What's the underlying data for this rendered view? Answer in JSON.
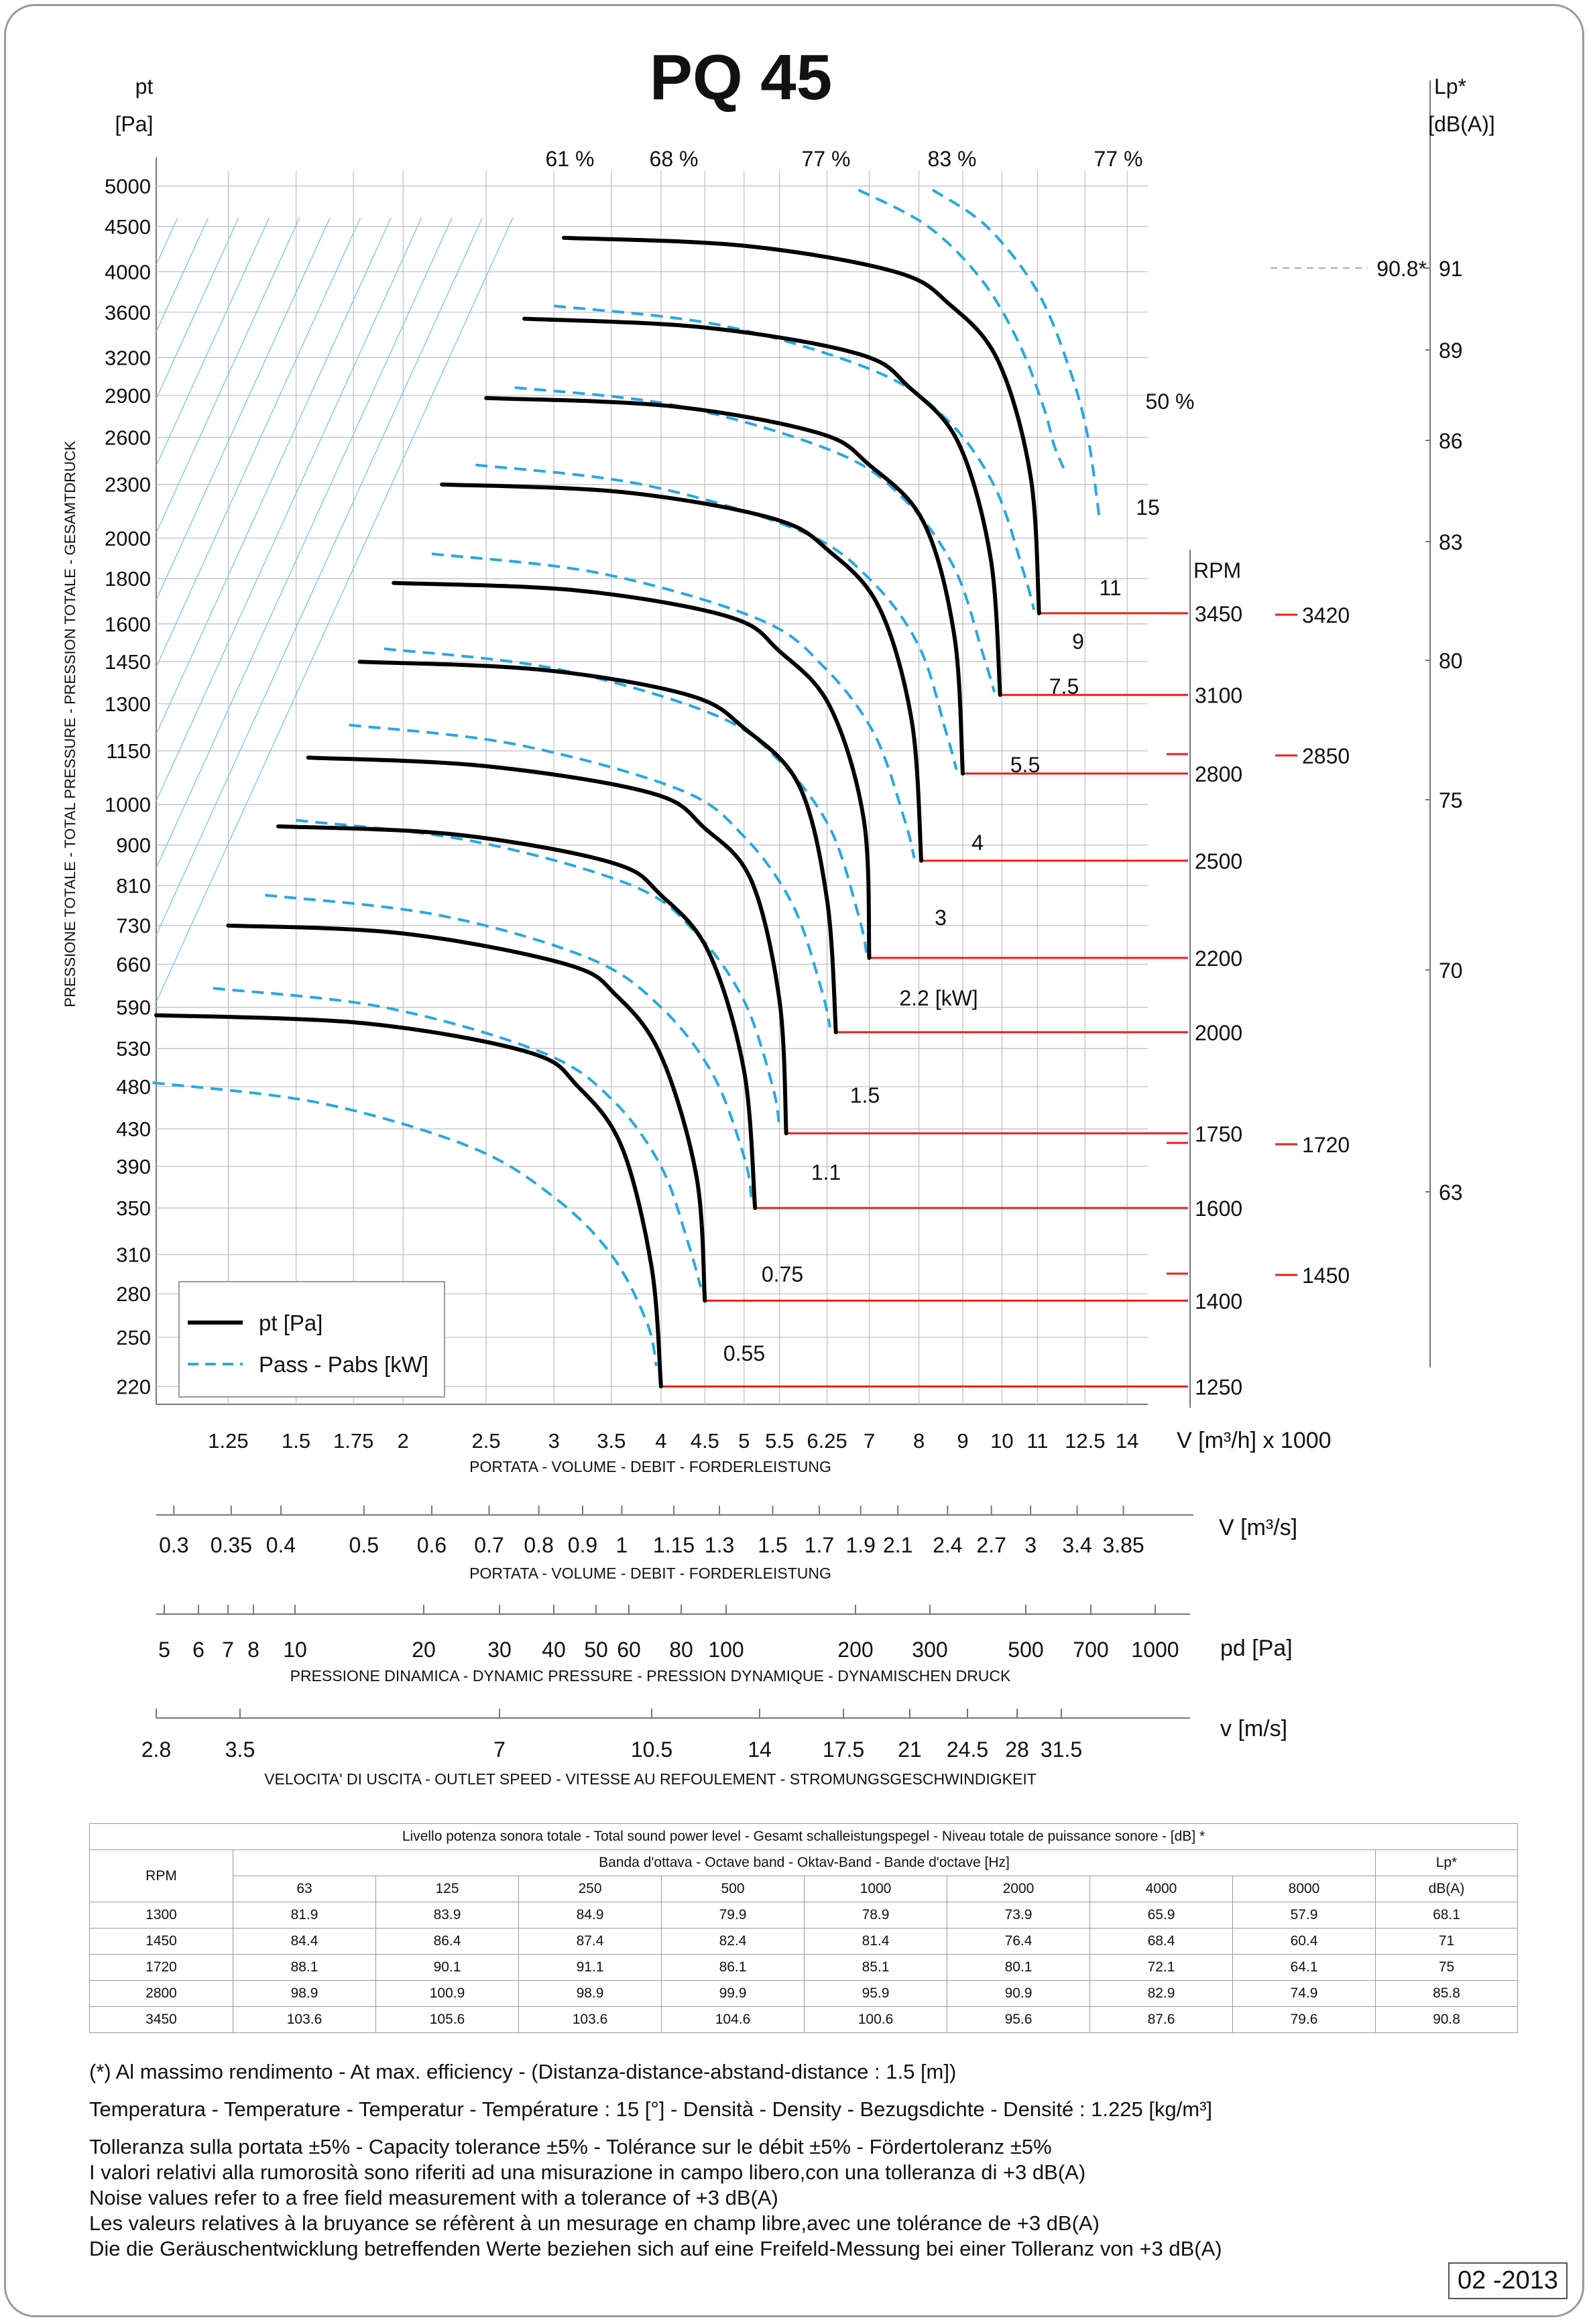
{
  "page": {
    "title": "PQ 45",
    "date": "02 -2013"
  },
  "chart_data": {
    "type": "line",
    "title": "PQ 45",
    "ylabel_top": "pt",
    "yunit_top": "[Pa]",
    "ylabel": "PRESSIONE TOTALE - TOTAL PRESSURE - PRESSION TOTALE - GESAMTDRUCK",
    "yscale": "log",
    "ylim": [
      210,
      5200
    ],
    "yticks": [
      220,
      250,
      280,
      310,
      350,
      390,
      430,
      480,
      530,
      590,
      660,
      730,
      810,
      900,
      1000,
      1150,
      1300,
      1450,
      1600,
      1800,
      2000,
      2300,
      2600,
      2900,
      3200,
      3600,
      4000,
      4500,
      5000
    ],
    "xscale": "log",
    "xlim": [
      1.03,
      14.8
    ],
    "xlabel": "V [m³/h]  x 1000",
    "xsub": "PORTATA - VOLUME - DEBIT - FORDERLEISTUNG",
    "xticks": [
      "1.25",
      "1.5",
      "1.75",
      "2",
      "2.5",
      "3",
      "3.5",
      "4",
      "4.5",
      "5",
      "5.5",
      "6.25",
      "7",
      "8",
      "9",
      "10",
      "11",
      "12.5",
      "14"
    ],
    "legend": {
      "position": "bottom-left",
      "pt_label": "pt [Pa]",
      "power_label": "Pass - Pabs [kW]"
    },
    "series": [
      {
        "rpm": "1250",
        "pt": [
          [
            1.03,
            578
          ],
          [
            1.8,
            566
          ],
          [
            2.8,
            525
          ],
          [
            3.2,
            480
          ],
          [
            3.6,
            410
          ],
          [
            3.9,
            300
          ],
          [
            4.0,
            220
          ]
        ]
      },
      {
        "rpm": "1400",
        "pt": [
          [
            1.25,
            730
          ],
          [
            2.0,
            715
          ],
          [
            3.1,
            660
          ],
          [
            3.55,
            608
          ],
          [
            4.0,
            520
          ],
          [
            4.4,
            380
          ],
          [
            4.5,
            275
          ]
        ]
      },
      {
        "rpm": "1600",
        "pt": [
          [
            1.43,
            945
          ],
          [
            2.3,
            925
          ],
          [
            3.5,
            860
          ],
          [
            4.0,
            790
          ],
          [
            4.55,
            680
          ],
          [
            5.0,
            500
          ],
          [
            5.15,
            350
          ]
        ]
      },
      {
        "rpm": "1750",
        "pt": [
          [
            1.55,
            1130
          ],
          [
            2.5,
            1105
          ],
          [
            3.9,
            1030
          ],
          [
            4.5,
            940
          ],
          [
            5.1,
            820
          ],
          [
            5.5,
            600
          ],
          [
            5.6,
            425
          ]
        ]
      },
      {
        "rpm": "2000",
        "pt": [
          [
            1.78,
            1450
          ],
          [
            2.9,
            1420
          ],
          [
            4.3,
            1330
          ],
          [
            5.0,
            1220
          ],
          [
            5.8,
            1050
          ],
          [
            6.25,
            780
          ],
          [
            6.4,
            553
          ]
        ]
      },
      {
        "rpm": "2200",
        "pt": [
          [
            1.95,
            1780
          ],
          [
            3.2,
            1745
          ],
          [
            4.8,
            1630
          ],
          [
            5.5,
            1490
          ],
          [
            6.3,
            1290
          ],
          [
            6.9,
            960
          ],
          [
            7.0,
            671
          ]
        ]
      },
      {
        "rpm": "2500",
        "pt": [
          [
            2.22,
            2300
          ],
          [
            3.6,
            2255
          ],
          [
            5.4,
            2105
          ],
          [
            6.3,
            1930
          ],
          [
            7.2,
            1665
          ],
          [
            7.85,
            1240
          ],
          [
            8.05,
            864
          ]
        ]
      },
      {
        "rpm": "2800",
        "pt": [
          [
            2.5,
            2880
          ],
          [
            4.1,
            2820
          ],
          [
            6.1,
            2630
          ],
          [
            7.0,
            2420
          ],
          [
            8.1,
            2085
          ],
          [
            8.8,
            1550
          ],
          [
            9.0,
            1084
          ]
        ]
      },
      {
        "rpm": "3100",
        "pt": [
          [
            2.77,
            3540
          ],
          [
            4.5,
            3460
          ],
          [
            6.8,
            3230
          ],
          [
            7.8,
            2960
          ],
          [
            8.9,
            2560
          ],
          [
            9.7,
            1900
          ],
          [
            9.95,
            1330
          ]
        ]
      },
      {
        "rpm": "3450",
        "pt": [
          [
            3.08,
            4370
          ],
          [
            5.0,
            4280
          ],
          [
            7.5,
            4000
          ],
          [
            8.7,
            3670
          ],
          [
            9.9,
            3170
          ],
          [
            10.8,
            2350
          ],
          [
            11.05,
            1645
          ]
        ]
      }
    ],
    "power_curves": [
      {
        "rpm": "1250",
        "p": [
          [
            1.02,
            485
          ],
          [
            1.6,
            460
          ],
          [
            2.4,
            410
          ],
          [
            3.0,
            360
          ],
          [
            3.5,
            310
          ],
          [
            3.85,
            260
          ],
          [
            3.95,
            232
          ]
        ]
      },
      {
        "rpm": "1400",
        "p": [
          [
            1.2,
            620
          ],
          [
            1.9,
            590
          ],
          [
            2.9,
            525
          ],
          [
            3.5,
            465
          ],
          [
            4.0,
            390
          ],
          [
            4.3,
            320
          ],
          [
            4.45,
            285
          ]
        ]
      },
      {
        "rpm": "1600",
        "p": [
          [
            1.38,
            790
          ],
          [
            2.2,
            750
          ],
          [
            3.3,
            670
          ],
          [
            4.0,
            590
          ],
          [
            4.6,
            495
          ],
          [
            5.0,
            400
          ],
          [
            5.1,
            360
          ]
        ]
      },
      {
        "rpm": "1750",
        "p": [
          [
            1.5,
            960
          ],
          [
            2.4,
            910
          ],
          [
            3.7,
            810
          ],
          [
            4.4,
            715
          ],
          [
            5.0,
            600
          ],
          [
            5.4,
            480
          ],
          [
            5.5,
            430
          ]
        ]
      },
      {
        "rpm": "2000",
        "p": [
          [
            1.73,
            1230
          ],
          [
            2.7,
            1170
          ],
          [
            4.2,
            1040
          ],
          [
            5.0,
            920
          ],
          [
            5.7,
            770
          ],
          [
            6.15,
            620
          ],
          [
            6.3,
            560
          ]
        ]
      },
      {
        "rpm": "2200",
        "p": [
          [
            1.9,
            1500
          ],
          [
            3.0,
            1425
          ],
          [
            4.6,
            1265
          ],
          [
            5.5,
            1120
          ],
          [
            6.3,
            940
          ],
          [
            6.8,
            750
          ],
          [
            6.95,
            680
          ]
        ]
      },
      {
        "rpm": "2500",
        "p": [
          [
            2.16,
            1920
          ],
          [
            3.4,
            1825
          ],
          [
            5.2,
            1620
          ],
          [
            6.2,
            1430
          ],
          [
            7.1,
            1200
          ],
          [
            7.7,
            960
          ],
          [
            7.9,
            870
          ]
        ]
      },
      {
        "rpm": "2800",
        "p": [
          [
            2.43,
            2420
          ],
          [
            3.8,
            2300
          ],
          [
            5.8,
            2040
          ],
          [
            7.0,
            1800
          ],
          [
            8.0,
            1510
          ],
          [
            8.6,
            1210
          ],
          [
            8.85,
            1095
          ]
        ]
      },
      {
        "rpm": "3100",
        "p": [
          [
            2.7,
            2960
          ],
          [
            4.2,
            2820
          ],
          [
            6.4,
            2500
          ],
          [
            7.7,
            2210
          ],
          [
            8.8,
            1850
          ],
          [
            9.5,
            1480
          ],
          [
            9.8,
            1340
          ]
        ]
      },
      {
        "rpm": "3450",
        "p": [
          [
            3.0,
            3660
          ],
          [
            4.7,
            3480
          ],
          [
            7.1,
            3090
          ],
          [
            8.6,
            2730
          ],
          [
            9.8,
            2290
          ],
          [
            10.6,
            1830
          ],
          [
            10.9,
            1660
          ]
        ]
      },
      {
        "rpm": "",
        "p": [
          [
            6.8,
            4950
          ],
          [
            8.2,
            4500
          ],
          [
            9.5,
            3900
          ],
          [
            10.5,
            3300
          ],
          [
            11.2,
            2800
          ],
          [
            11.5,
            2550
          ],
          [
            11.8,
            2400
          ]
        ]
      },
      {
        "rpm": "",
        "p": [
          [
            8.3,
            4950
          ],
          [
            9.6,
            4500
          ],
          [
            11.0,
            3800
          ],
          [
            12.0,
            3100
          ],
          [
            12.6,
            2600
          ],
          [
            13.0,
            2100
          ]
        ]
      }
    ],
    "efficiency_labels": [
      "61 %",
      "68 %",
      "77 %",
      "83 %",
      "77 %",
      "50 %"
    ],
    "power_labels": [
      "15",
      "11",
      "9",
      "7.5",
      "5.5",
      "4",
      "3",
      "2.2  [kW]",
      "1.5",
      "1.1",
      "0.75",
      "0.55"
    ],
    "rpm_header": "RPM",
    "rpm_lines": [
      "3450",
      "3100",
      "2800",
      "2500",
      "2200",
      "2000",
      "1750",
      "1600",
      "1400",
      "1250"
    ],
    "rpm_extra": [
      "3420",
      "2850",
      "1720",
      "1450"
    ],
    "lp_axis": {
      "label": "Lp*",
      "unit": "[dB(A)]",
      "ticks": [
        "91",
        "89",
        "86",
        "83",
        "80",
        "75",
        "70",
        "63"
      ],
      "max_note": "90.8*"
    }
  },
  "scales": {
    "flow_m3s": {
      "label": "V  [m³/s]",
      "sub": "PORTATA - VOLUME - DEBIT - FORDERLEISTUNG",
      "ticks": [
        "0.3",
        "0.35",
        "0.4",
        "0.5",
        "0.6",
        "0.7",
        "0.8",
        "0.9",
        "1",
        "1.15",
        "1.3",
        "1.5",
        "1.7",
        "1.9",
        "2.1",
        "2.4",
        "2.7",
        "3",
        "3.4",
        "3.85"
      ]
    },
    "pd": {
      "label": "pd  [Pa]",
      "sub": "PRESSIONE DINAMICA - DYNAMIC PRESSURE - PRESSION DYNAMIQUE - DYNAMISCHEN DRUCK",
      "ticks": [
        "5",
        "6",
        "7",
        "8",
        "10",
        "20",
        "30",
        "40",
        "50",
        "60",
        "80",
        "100",
        "200",
        "300",
        "500",
        "700",
        "1000"
      ]
    },
    "speed": {
      "label": "v  [m/s]",
      "sub": "VELOCITA' DI USCITA - OUTLET SPEED - VITESSE AU REFOULEMENT - STROMUNGSGESCHWINDIGKEIT",
      "ticks": [
        "2.8",
        "3.5",
        "7",
        "10.5",
        "14",
        "17.5",
        "21",
        "24.5",
        "28",
        "31.5"
      ]
    }
  },
  "sound_table": {
    "title": "Livello potenza sonora totale - Total sound power level - Gesamt schalleistungspegel - Niveau totale de puissance sonore - [dB]   *",
    "band_title": "Banda d'ottava - Octave band - Oktav-Band - Bande d'octave [Hz]",
    "rpm_label": "RPM",
    "lp_label": "Lp*",
    "lp_unit": "dB(A)",
    "bands": [
      "63",
      "125",
      "250",
      "500",
      "1000",
      "2000",
      "4000",
      "8000"
    ],
    "rows": [
      {
        "rpm": "1300",
        "values": [
          "81.9",
          "83.9",
          "84.9",
          "79.9",
          "78.9",
          "73.9",
          "65.9",
          "57.9"
        ],
        "lp": "68.1"
      },
      {
        "rpm": "1450",
        "values": [
          "84.4",
          "86.4",
          "87.4",
          "82.4",
          "81.4",
          "76.4",
          "68.4",
          "60.4"
        ],
        "lp": "71"
      },
      {
        "rpm": "1720",
        "values": [
          "88.1",
          "90.1",
          "91.1",
          "86.1",
          "85.1",
          "80.1",
          "72.1",
          "64.1"
        ],
        "lp": "75"
      },
      {
        "rpm": "2800",
        "values": [
          "98.9",
          "100.9",
          "98.9",
          "99.9",
          "95.9",
          "90.9",
          "82.9",
          "74.9"
        ],
        "lp": "85.8"
      },
      {
        "rpm": "3450",
        "values": [
          "103.6",
          "105.6",
          "103.6",
          "104.6",
          "100.6",
          "95.6",
          "87.6",
          "79.6"
        ],
        "lp": "90.8"
      }
    ]
  },
  "notes": [
    "(*) Al massimo rendimento - At max. efficiency - (Distanza-distance-abstand-distance : 1.5 [m])",
    "Temperatura - Temperature - Temperatur - Température : 15 [°]  -  Densità - Density - Bezugsdichte - Densité : 1.225 [kg/m³]",
    "Tolleranza sulla portata  ±5% - Capacity tolerance ±5% - Tolérance sur le débit ±5% - Fördertoleranz ±5%",
    "I valori relativi alla rumorosità sono riferiti ad una misurazione in campo libero,con una tolleranza di +3 dB(A)",
    "Noise values refer to a free field measurement with a tolerance of +3 dB(A)",
    "Les valeurs relatives à la bruyance se réfèrent à un mesurage en champ libre,avec une tolérance de +3 dB(A)",
    "Die die Geräuschentwicklung betreffenden Werte beziehen sich auf eine Freifeld-Messung bei einer Tolleranz von +3 dB(A)"
  ],
  "colors": {
    "pt_curve": "#000000",
    "power_curve": "#29a8e0",
    "rpm_line": "#e8201a",
    "grid": "#bdbdbd",
    "iso_line": "#7cc8ee"
  }
}
